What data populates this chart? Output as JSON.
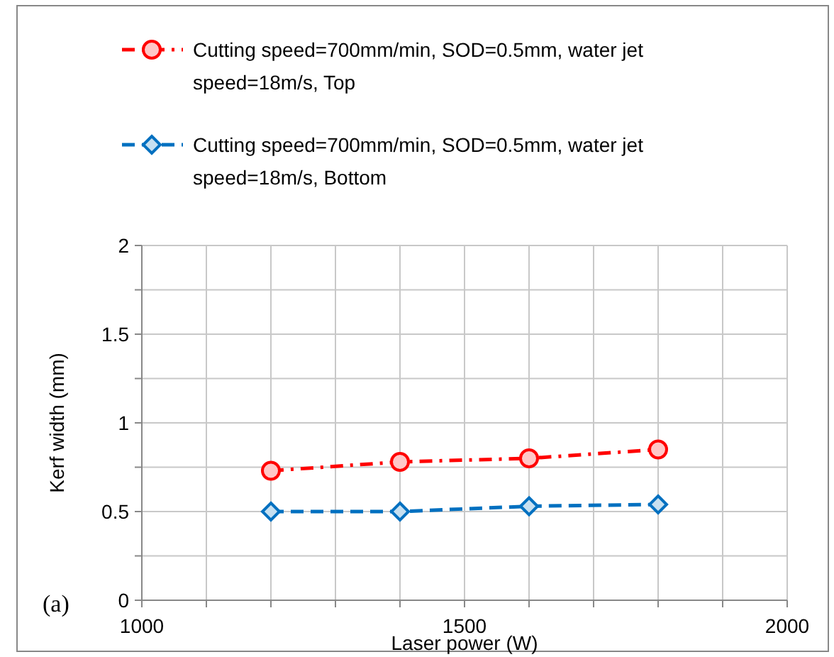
{
  "chart_data": {
    "type": "line",
    "xlabel": "Laser power (W)",
    "ylabel": "Kerf width (mm)",
    "x": [
      1200,
      1400,
      1600,
      1800
    ],
    "series": [
      {
        "name": "Cutting speed=700mm/min, SOD=0.5mm, water jet speed=18m/s, Top",
        "color": "#ff0000",
        "values": [
          0.73,
          0.78,
          0.8,
          0.85
        ],
        "marker": "circle",
        "line_style": "dashdot"
      },
      {
        "name": "Cutting speed=700mm/min, SOD=0.5mm, water jet speed=18m/s, Bottom",
        "color": "#0070c0",
        "values": [
          0.5,
          0.5,
          0.53,
          0.54
        ],
        "marker": "diamond",
        "line_style": "dashed"
      }
    ],
    "xlim": [
      1000,
      2000
    ],
    "xticks": [
      1000,
      {
        "value": 1100,
        "label": null
      },
      {
        "value": 1200,
        "label": null
      },
      {
        "value": 1300,
        "label": null
      },
      {
        "value": 1400,
        "label": null
      },
      1500,
      {
        "value": 1600,
        "label": null
      },
      {
        "value": 1700,
        "label": null
      },
      {
        "value": 1800,
        "label": null
      },
      {
        "value": 1900,
        "label": null
      },
      2000
    ],
    "ylim": [
      0,
      2
    ],
    "yticks": [
      0,
      {
        "value": 0.25,
        "label": null
      },
      0.5,
      {
        "value": 0.75,
        "label": null
      },
      1,
      {
        "value": 1.25,
        "label": null
      },
      1.5,
      {
        "value": 1.75,
        "label": null
      },
      2
    ],
    "grid": true,
    "legend": "top",
    "annotations": [
      "(a)"
    ]
  }
}
